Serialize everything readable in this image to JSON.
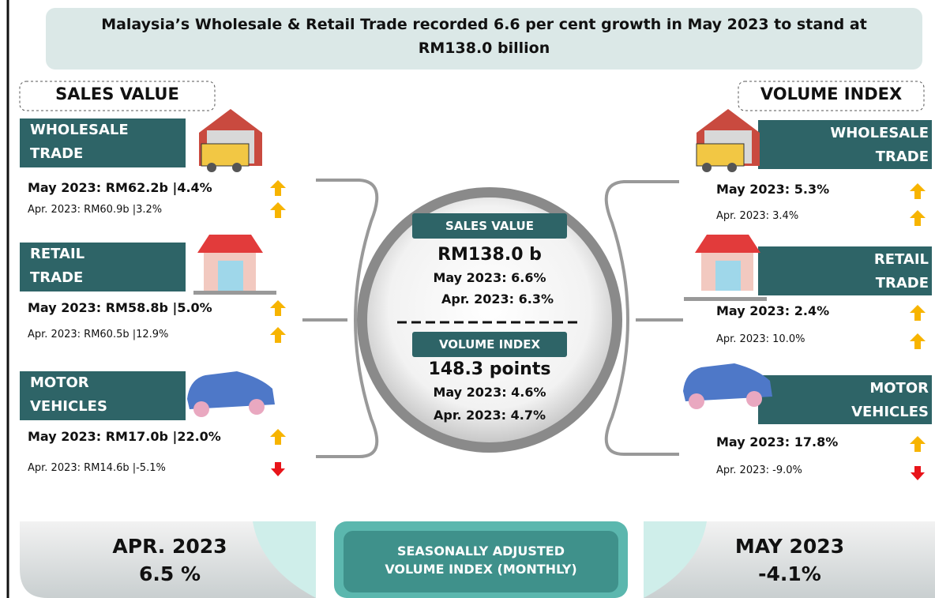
{
  "header": {
    "title_lines": [
      "Malaysia’s Wholesale & Retail Trade recorded 6.6 per cent growth in May 2023 to stand at",
      "RM138.0 billion"
    ]
  },
  "sales_value": {
    "heading": "SALES VALUE",
    "sectors": [
      {
        "name_lines": [
          "WHOLESALE",
          "TRADE"
        ],
        "current": "May 2023: RM62.2b |4.4%",
        "current_trend": "up",
        "previous": "Apr. 2023: RM60.9b |3.2%",
        "previous_trend": "up"
      },
      {
        "name_lines": [
          "RETAIL",
          "TRADE"
        ],
        "current": "May 2023: RM58.8b |5.0%",
        "current_trend": "up",
        "previous": "Apr. 2023: RM60.5b |12.9%",
        "previous_trend": "up"
      },
      {
        "name_lines": [
          "MOTOR",
          "VEHICLES"
        ],
        "current": "May 2023: RM17.0b |22.0%",
        "current_trend": "up",
        "previous": "Apr. 2023: RM14.6b |-5.1%",
        "previous_trend": "down"
      }
    ]
  },
  "volume_index": {
    "heading": "VOLUME INDEX",
    "sectors": [
      {
        "name_lines": [
          "WHOLESALE",
          "TRADE"
        ],
        "current": "May 2023: 5.3%",
        "current_trend": "up",
        "previous": "Apr. 2023: 3.4%",
        "previous_trend": "up"
      },
      {
        "name_lines": [
          "RETAIL",
          "TRADE"
        ],
        "current": "May 2023: 2.4%",
        "current_trend": "up",
        "previous": "Apr. 2023: 10.0%",
        "previous_trend": "up"
      },
      {
        "name_lines": [
          "MOTOR",
          "VEHICLES"
        ],
        "current": "May 2023: 17.8%",
        "current_trend": "up",
        "previous": "Apr. 2023: -9.0%",
        "previous_trend": "down"
      }
    ]
  },
  "center": {
    "sales_heading": "SALES VALUE",
    "sales_total": "RM138.0 b",
    "sales_current": "May 2023: 6.6%",
    "sales_previous": "Apr. 2023: 6.3%",
    "volume_heading": "VOLUME INDEX",
    "volume_total": "148.3 points",
    "volume_current": "May 2023: 4.6%",
    "volume_previous": "Apr. 2023: 4.7%"
  },
  "footer": {
    "left": {
      "period": "APR. 2023",
      "value": "6.5 %"
    },
    "center_lines": [
      "SEASONALLY ADJUSTED",
      "VOLUME INDEX (MONTHLY)"
    ],
    "right": {
      "period": "MAY 2023",
      "value": "-4.1%"
    }
  }
}
